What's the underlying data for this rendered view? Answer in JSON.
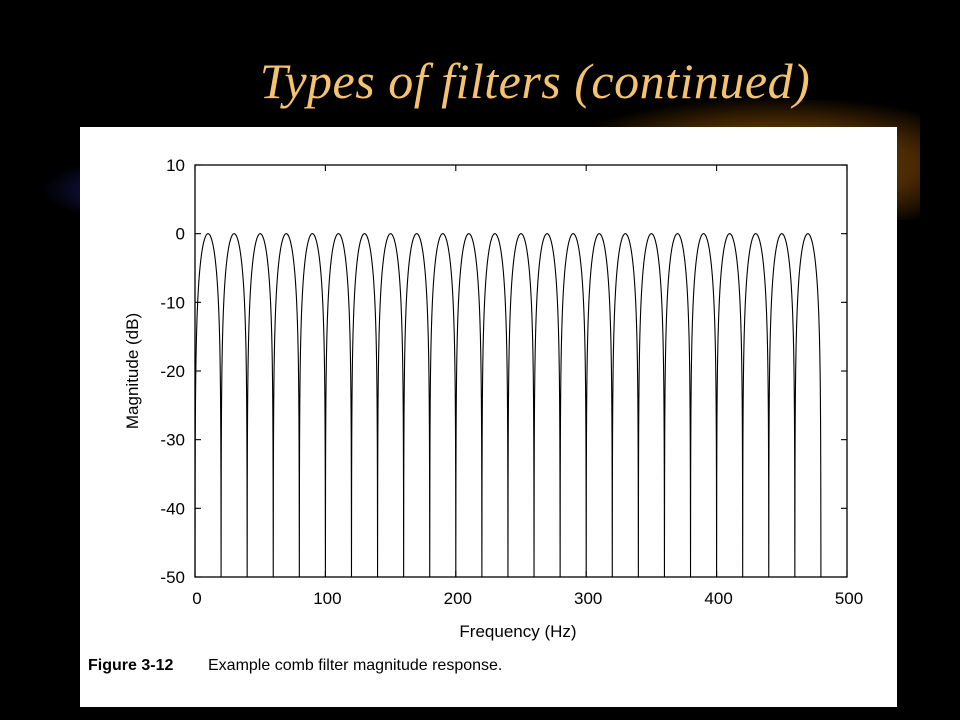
{
  "slide": {
    "title": "Types of filters (continued)",
    "title_color": "#f5c270",
    "background": "#000000"
  },
  "figure": {
    "caption_label": "Figure 3-12",
    "caption_text": "Example comb filter magnitude response."
  },
  "chart_data": {
    "type": "line",
    "xlabel": "Frequency (Hz)",
    "ylabel": "Magnitude (dB)",
    "xlim": [
      0,
      500
    ],
    "ylim": [
      -50,
      10
    ],
    "x_ticks": [
      0,
      100,
      200,
      300,
      400,
      500
    ],
    "y_ticks": [
      10,
      0,
      -10,
      -20,
      -30,
      -40,
      -50
    ],
    "grid": false,
    "series": [
      {
        "color": "#000000",
        "peak_x": [
          10,
          30,
          50,
          70,
          90,
          110,
          130,
          150,
          170,
          190,
          210,
          230,
          250,
          270,
          290,
          310,
          330,
          350,
          370,
          390,
          410,
          430,
          450,
          470
        ],
        "peak_y": 0,
        "notch_x": [
          0,
          20,
          40,
          60,
          80,
          100,
          120,
          140,
          160,
          180,
          200,
          220,
          240,
          260,
          280,
          300,
          320,
          340,
          360,
          380,
          400,
          420,
          440,
          460,
          480
        ],
        "notch_floor": -50
      }
    ]
  }
}
